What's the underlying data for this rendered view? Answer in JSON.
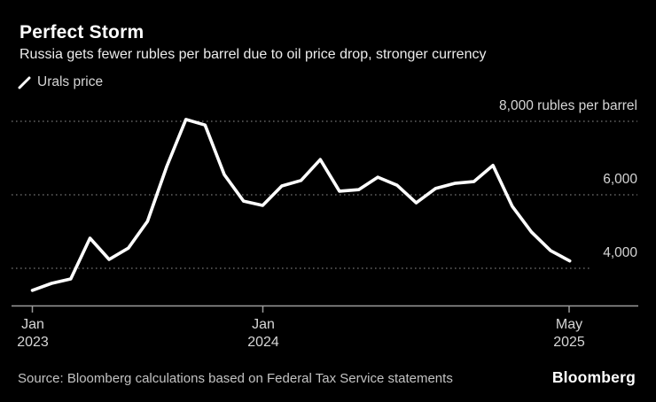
{
  "header": {
    "title": "Perfect Storm",
    "subtitle": "Russia gets fewer rubles per barrel due to oil price drop, stronger currency"
  },
  "legend": {
    "label": "Urals price"
  },
  "chart_data": {
    "type": "line",
    "title": "Perfect Storm",
    "subtitle": "Russia gets fewer rubles per barrel due to oil price drop, stronger currency",
    "unit": "rubles per barrel",
    "grid": "horizontal-dotted",
    "legend_position": "top-left",
    "ylim": [
      3000,
      8400
    ],
    "x": [
      "Jan 2023",
      "Feb 2023",
      "Mar 2023",
      "Apr 2023",
      "May 2023",
      "Jun 2023",
      "Jul 2023",
      "Aug 2023",
      "Sep 2023",
      "Oct 2023",
      "Nov 2023",
      "Dec 2023",
      "Jan 2024",
      "Feb 2024",
      "Mar 2024",
      "Apr 2024",
      "May 2024",
      "Jun 2024",
      "Jul 2024",
      "Aug 2024",
      "Sep 2024",
      "Oct 2024",
      "Nov 2024",
      "Dec 2024",
      "Jan 2025",
      "Feb 2025",
      "Mar 2025",
      "Apr 2025",
      "May 2025"
    ],
    "series": [
      {
        "name": "Urals price",
        "color": "#ffffff",
        "values": [
          3400,
          3590,
          3710,
          4820,
          4240,
          4550,
          5280,
          6770,
          8050,
          7900,
          6550,
          5830,
          5710,
          6240,
          6390,
          6960,
          6100,
          6140,
          6480,
          6260,
          5780,
          6170,
          6310,
          6360,
          6800,
          5690,
          4990,
          4480,
          4200
        ]
      }
    ],
    "y_gridlines": [
      {
        "value": 8000,
        "label": "8,000 rubles per barrel"
      },
      {
        "value": 6000,
        "label": "6,000"
      },
      {
        "value": 4000,
        "label": "4,000"
      }
    ],
    "x_ticks": [
      {
        "index": 0,
        "month": "Jan",
        "year": "2023"
      },
      {
        "index": 12,
        "month": "Jan",
        "year": "2024"
      },
      {
        "index": 28,
        "month": "May",
        "year": "2025"
      }
    ]
  },
  "footer": {
    "source": "Source: Bloomberg calculations based on Federal Tax Service statements",
    "logo": "Bloomberg"
  },
  "colors": {
    "background": "#000000",
    "line": "#ffffff",
    "gridline": "#616161",
    "axis": "#9b9b9b",
    "labels": "#d6d6d6"
  }
}
